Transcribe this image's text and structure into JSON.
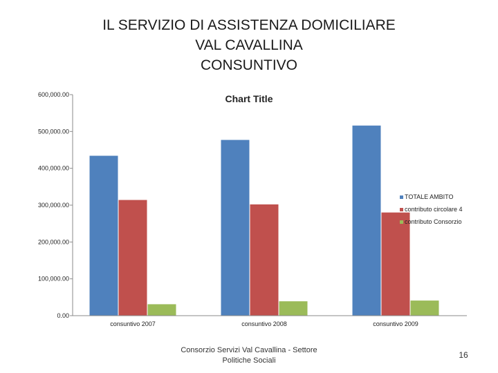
{
  "slide": {
    "title_lines": [
      "IL SERVIZIO DI ASSISTENZA DOMICILIARE",
      "VAL CAVALLINA",
      "CONSUNTIVO"
    ],
    "footer_lines": [
      "Consorzio Servizi Val Cavallina - Settore",
      "Politiche Sociali"
    ],
    "page_number": "16"
  },
  "chart_data": {
    "type": "bar",
    "title": "Chart Title",
    "categories": [
      "consuntivo 2007",
      "consuntivo 2008",
      "consuntivo 2009"
    ],
    "series": [
      {
        "name": "TOTALE AMBITO",
        "color": "#4f81bd",
        "values": [
          435000,
          478000,
          517000
        ]
      },
      {
        "name": "contributo circolare 4",
        "color": "#c0504d",
        "values": [
          315000,
          303000,
          281000
        ]
      },
      {
        "name": "contributo Consorzio",
        "color": "#9bbb59",
        "values": [
          32000,
          40000,
          42000
        ]
      }
    ],
    "ylim": [
      0,
      600000
    ],
    "yticks": [
      0,
      100000,
      200000,
      300000,
      400000,
      500000,
      600000
    ],
    "ytick_labels": [
      "0.00",
      "100,000.00",
      "200,000.00",
      "300,000.00",
      "400,000.00",
      "500,000.00",
      "600,000.00"
    ],
    "legend_position": "right",
    "grid": false
  }
}
